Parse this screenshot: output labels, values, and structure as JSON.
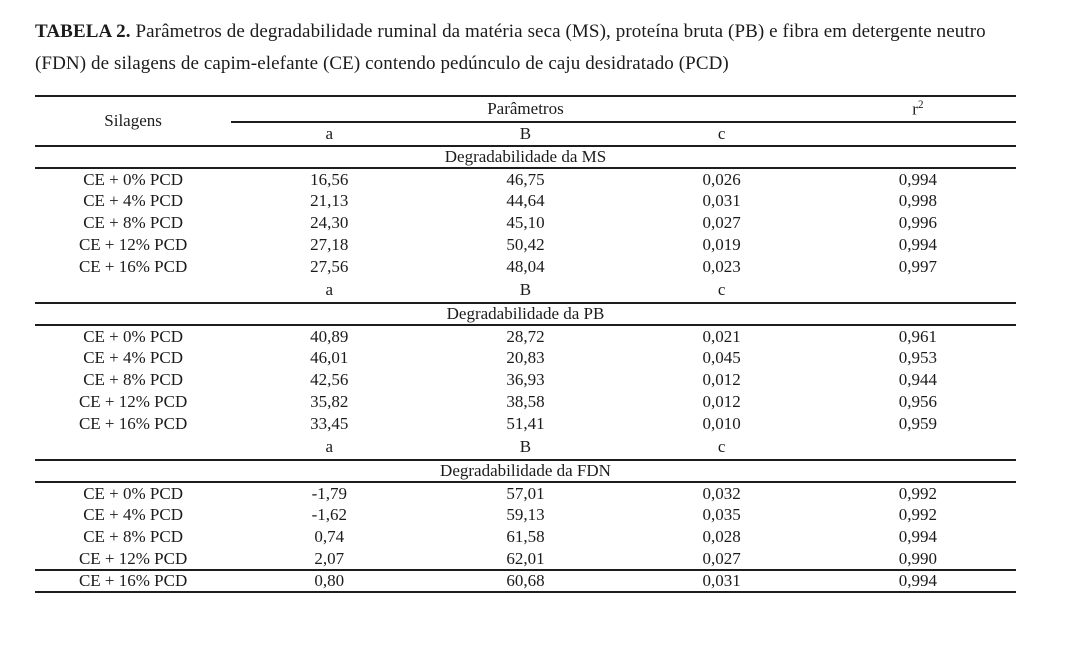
{
  "caption": {
    "label": "TABELA 2.",
    "line1": "Parâmetros de degradabilidade ruminal da matéria seca (MS), proteína bruta (PB) e fibra em detergente neutro",
    "line2": "(FDN) de silagens de capim-elefante (CE) contendo pedúnculo de caju desidratado (PCD)"
  },
  "table": {
    "header": {
      "silages": "Silagens",
      "parameters_group": "Parâmetros",
      "r2_base": "r",
      "r2_sup": "2",
      "sub": [
        "a",
        "B",
        "c"
      ]
    },
    "sections": [
      {
        "title": "Degradabilidade da MS",
        "repeat_subheader_before": false,
        "rows": [
          [
            "CE + 0% PCD",
            "16,56",
            "46,75",
            "0,026",
            "0,994"
          ],
          [
            "CE + 4% PCD",
            "21,13",
            "44,64",
            "0,031",
            "0,998"
          ],
          [
            "CE + 8% PCD",
            "24,30",
            "45,10",
            "0,027",
            "0,996"
          ],
          [
            "CE + 12% PCD",
            "27,18",
            "50,42",
            "0,019",
            "0,994"
          ],
          [
            "CE + 16% PCD",
            "27,56",
            "48,04",
            "0,023",
            "0,997"
          ]
        ]
      },
      {
        "title": "Degradabilidade da PB",
        "repeat_subheader_before": true,
        "rows": [
          [
            "CE + 0% PCD",
            "40,89",
            "28,72",
            "0,021",
            "0,961"
          ],
          [
            "CE + 4% PCD",
            "46,01",
            "20,83",
            "0,045",
            "0,953"
          ],
          [
            "CE + 8% PCD",
            "42,56",
            "36,93",
            "0,012",
            "0,944"
          ],
          [
            "CE + 12% PCD",
            "35,82",
            "38,58",
            "0,012",
            "0,956"
          ],
          [
            "CE + 16% PCD",
            "33,45",
            "51,41",
            "0,010",
            "0,959"
          ]
        ]
      },
      {
        "title": "Degradabilidade da FDN",
        "repeat_subheader_before": true,
        "rows": [
          [
            "CE + 0% PCD",
            "-1,79",
            "57,01",
            "0,032",
            "0,992"
          ],
          [
            "CE + 4% PCD",
            "-1,62",
            "59,13",
            "0,035",
            "0,992"
          ],
          [
            "CE + 8% PCD",
            "0,74",
            "61,58",
            "0,028",
            "0,994"
          ],
          [
            "CE + 12% PCD",
            "2,07",
            "62,01",
            "0,027",
            "0,990"
          ],
          [
            "CE + 16% PCD",
            "0,80",
            "60,68",
            "0,031",
            "0,994"
          ]
        ]
      }
    ]
  }
}
